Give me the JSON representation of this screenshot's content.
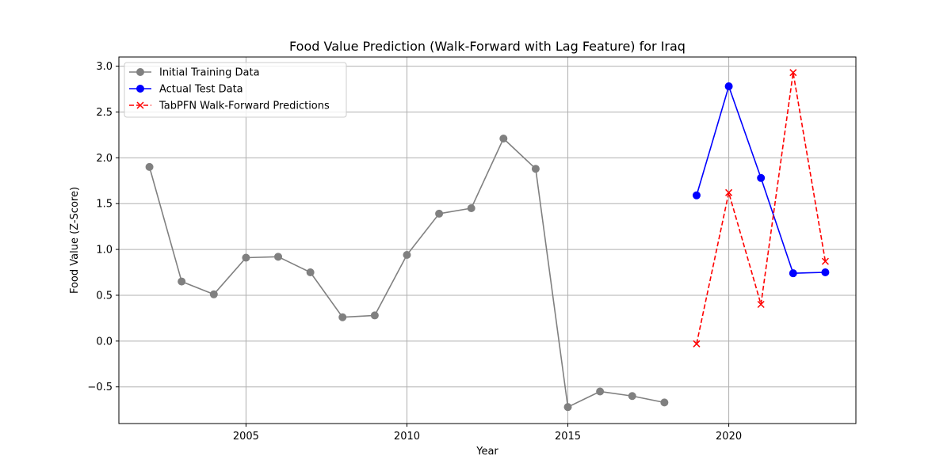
{
  "chart_data": {
    "type": "line",
    "title": "Food Value Prediction (Walk-Forward with Lag Feature) for Iraq",
    "xlabel": "Year",
    "ylabel": "Food Value (Z-Score)",
    "xlim": [
      2001.05,
      2023.95
    ],
    "ylim": [
      -0.9,
      3.1
    ],
    "xticks": [
      2005,
      2010,
      2015,
      2020
    ],
    "yticks": [
      -0.5,
      0.0,
      0.5,
      1.0,
      1.5,
      2.0,
      2.5,
      3.0
    ],
    "ytick_labels": [
      "−0.5",
      "0.0",
      "0.5",
      "1.0",
      "1.5",
      "2.0",
      "2.5",
      "3.0"
    ],
    "grid": true,
    "legend_position": "upper-left",
    "series": [
      {
        "name": "Initial Training Data",
        "color": "#808080",
        "marker": "circle",
        "linestyle": "solid",
        "x": [
          2002,
          2003,
          2004,
          2005,
          2006,
          2007,
          2008,
          2009,
          2010,
          2011,
          2012,
          2013,
          2014,
          2015,
          2016,
          2017,
          2018
        ],
        "y": [
          1.9,
          0.65,
          0.51,
          0.91,
          0.92,
          0.75,
          0.26,
          0.28,
          0.94,
          1.39,
          1.45,
          2.21,
          1.88,
          -0.72,
          -0.55,
          -0.6,
          -0.67
        ]
      },
      {
        "name": "Actual Test Data",
        "color": "#0000ff",
        "marker": "circle",
        "linestyle": "solid",
        "x": [
          2019,
          2020,
          2021,
          2022,
          2023
        ],
        "y": [
          1.59,
          2.78,
          1.78,
          0.74,
          0.75
        ]
      },
      {
        "name": "TabPFN Walk-Forward Predictions",
        "color": "#ff0000",
        "marker": "x",
        "linestyle": "dashed",
        "x": [
          2019,
          2020,
          2021,
          2022,
          2023
        ],
        "y": [
          -0.03,
          1.62,
          0.4,
          2.93,
          0.87
        ]
      }
    ]
  }
}
